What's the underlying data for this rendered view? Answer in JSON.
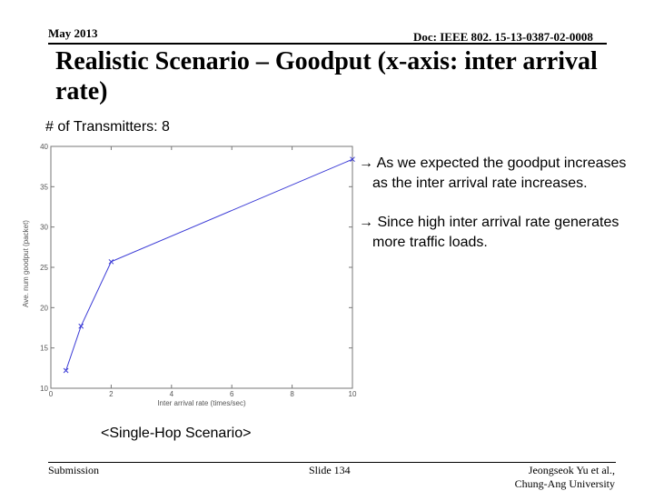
{
  "header": {
    "date": "May 2013",
    "doc": "Doc: IEEE 802. 15-13-0387-02-0008"
  },
  "title": "Realistic Scenario – Goodput (x-axis: inter arrival rate)",
  "subtitle": "# of Transmitters: 8",
  "notes": [
    {
      "line1": "→ As we expected the goodput increases",
      "line2": "as the inter arrival rate increases."
    },
    {
      "line1": "→ Since high inter arrival rate generates",
      "line2": "more traffic loads."
    }
  ],
  "caption": "<Single-Hop Scenario>",
  "footer": {
    "left": "Submission",
    "middle": "Slide 134",
    "right_line1": "Jeongseok Yu et al.,",
    "right_line2": "Chung-Ang University"
  },
  "chart_data": {
    "type": "line",
    "title": "",
    "xlabel": "Inter arrival rate (times/sec)",
    "ylabel": "Ave. num goodput (packet)",
    "xlim": [
      0,
      10
    ],
    "ylim": [
      10,
      40
    ],
    "x_ticks": [
      0,
      2,
      4,
      6,
      8,
      10
    ],
    "y_ticks": [
      10,
      15,
      20,
      25,
      30,
      35,
      40
    ],
    "grid": false,
    "line_color": "#3b3bd6",
    "series": [
      {
        "x": [
          0.5,
          1,
          2,
          10
        ],
        "values": [
          12.2,
          17.7,
          25.7,
          38.4
        ]
      }
    ]
  }
}
